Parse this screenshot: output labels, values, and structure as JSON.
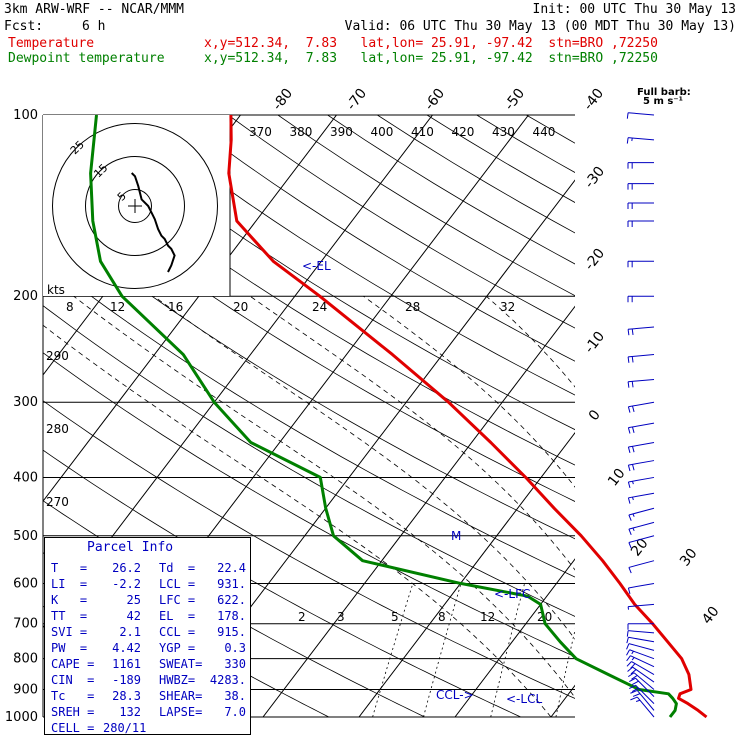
{
  "header": {
    "model": "3km ARW-WRF -- NCAR/MMM",
    "init": "Init: 00 UTC Thu 30 May 13",
    "fcst_label": "Fcst:",
    "fcst_value": "6 h",
    "valid": "Valid: 06 UTC Thu 30 May 13 (00 MDT Thu 30 May 13)"
  },
  "legend": [
    {
      "name": "Temperature",
      "info": "x,y=512.34,  7.83   lat,lon= 25.91, -97.42  stn=BRO ,72250",
      "color": "#e00000"
    },
    {
      "name": "Dewpoint temperature",
      "info": "x,y=512.34,  7.83   lat,lon= 25.91, -97.42  stn=BRO ,72250",
      "color": "#008000"
    }
  ],
  "wind_label": {
    "line1": "Full barb:",
    "line2": "5 m s⁻¹"
  },
  "hodograph": {
    "unit": "kts",
    "ring_labels": [
      "5",
      "15",
      "25"
    ]
  },
  "parcel_info": {
    "title": "Parcel Info",
    "rows": [
      [
        "T   =",
        "26.2",
        "Td  =",
        "22.4"
      ],
      [
        "LI  =",
        "-2.2",
        "LCL =",
        "931."
      ],
      [
        "K   =",
        "25",
        "LFC =",
        "622."
      ],
      [
        "TT  =",
        "42",
        "EL  =",
        "178."
      ],
      [
        "SVI =",
        "2.1",
        "CCL =",
        "915."
      ],
      [
        "PW  =",
        "4.42",
        "YGP =",
        "0.3"
      ],
      [
        "CAPE =",
        "1161",
        "SWEAT=",
        "330"
      ],
      [
        "CIN  =",
        "-189",
        "HWBZ=",
        "4283."
      ],
      [
        "Tc   =",
        "28.3",
        "SHEAR=",
        "38."
      ],
      [
        "SREH =",
        "132",
        "LAPSE=",
        "7.0"
      ],
      [
        "CELL =",
        "280/11",
        "",
        ""
      ]
    ]
  },
  "chart_data": {
    "type": "line",
    "title": "",
    "xlabel": "",
    "ylabel": "",
    "pressure_axis": {
      "ticks": [
        100,
        200,
        300,
        400,
        500,
        600,
        700,
        800,
        900,
        1000
      ],
      "scale": "log"
    },
    "isotherm_labels": [
      "-80",
      "-70",
      "-60",
      "-50",
      "-40",
      "-30",
      "-20",
      "-10",
      "0",
      "10",
      "20",
      "30",
      "40"
    ],
    "theta_labels": [
      "370",
      "380",
      "390",
      "400",
      "410",
      "420",
      "430",
      "440"
    ],
    "theta_e_labels": [
      "290",
      "280",
      "270"
    ],
    "mixing_ratio_labels": [
      "2",
      "3",
      "5",
      "8",
      "12",
      "20"
    ],
    "hodo_speed_labels": [
      "8",
      "12",
      "16",
      "20",
      "24",
      "28",
      "32"
    ],
    "annotations": [
      "<-EL",
      "<-LFC",
      "CCL->",
      "<-LCL",
      "M"
    ],
    "series": [
      {
        "name": "Temperature",
        "color": "#e00000",
        "points": [
          [
            1000,
            26.2
          ],
          [
            975,
            24.8
          ],
          [
            950,
            23.2
          ],
          [
            931,
            21.8
          ],
          [
            915,
            21.6
          ],
          [
            900,
            22.4
          ],
          [
            850,
            21.0
          ],
          [
            800,
            19.0
          ],
          [
            750,
            16.2
          ],
          [
            700,
            13.2
          ],
          [
            650,
            9.8
          ],
          [
            600,
            6.6
          ],
          [
            550,
            3.0
          ],
          [
            500,
            -1.2
          ],
          [
            450,
            -6.2
          ],
          [
            400,
            -11.6
          ],
          [
            350,
            -18.0
          ],
          [
            300,
            -25.6
          ],
          [
            250,
            -35.2
          ],
          [
            200,
            -47.4
          ],
          [
            175,
            -55.0
          ],
          [
            150,
            -62.0
          ],
          [
            125,
            -66.6
          ],
          [
            110,
            -69.0
          ],
          [
            100,
            -71.0
          ]
        ]
      },
      {
        "name": "Dewpoint temperature",
        "color": "#008000",
        "points": [
          [
            1000,
            22.4
          ],
          [
            975,
            22.4
          ],
          [
            950,
            22.0
          ],
          [
            931,
            21.2
          ],
          [
            915,
            20.4
          ],
          [
            900,
            17.0
          ],
          [
            850,
            12.6
          ],
          [
            800,
            8.0
          ],
          [
            750,
            5.0
          ],
          [
            700,
            2.0
          ],
          [
            650,
            0.0
          ],
          [
            630,
            -2.0
          ],
          [
            600,
            -10.0
          ],
          [
            550,
            -22.0
          ],
          [
            500,
            -27.0
          ],
          [
            450,
            -30.0
          ],
          [
            400,
            -33.0
          ],
          [
            350,
            -43.0
          ],
          [
            300,
            -50.0
          ],
          [
            250,
            -57.0
          ],
          [
            200,
            -68.0
          ],
          [
            175,
            -73.0
          ],
          [
            150,
            -77.0
          ],
          [
            125,
            -81.0
          ],
          [
            100,
            -85.0
          ]
        ]
      }
    ],
    "hodograph_trace": {
      "unit": "kts",
      "points": [
        [
          -1,
          10
        ],
        [
          0,
          9
        ],
        [
          1,
          6
        ],
        [
          2,
          2
        ],
        [
          4,
          0
        ],
        [
          5,
          -2
        ],
        [
          6,
          -4
        ],
        [
          7,
          -7
        ],
        [
          8,
          -9
        ],
        [
          9,
          -10
        ],
        [
          10,
          -12
        ],
        [
          11,
          -13
        ],
        [
          12,
          -15
        ],
        [
          11,
          -18
        ],
        [
          10,
          -20
        ]
      ]
    },
    "wind_barbs": {
      "unit": "m s-1",
      "levels": [
        [
          1000,
          220,
          8
        ],
        [
          975,
          220,
          10
        ],
        [
          950,
          225,
          12
        ],
        [
          925,
          225,
          12
        ],
        [
          900,
          230,
          12
        ],
        [
          875,
          235,
          11
        ],
        [
          850,
          240,
          10
        ],
        [
          825,
          245,
          9
        ],
        [
          800,
          250,
          8
        ],
        [
          775,
          255,
          7
        ],
        [
          750,
          260,
          6
        ],
        [
          725,
          265,
          5
        ],
        [
          700,
          270,
          5
        ],
        [
          650,
          275,
          4
        ],
        [
          600,
          280,
          5
        ],
        [
          550,
          285,
          6
        ],
        [
          500,
          285,
          7
        ],
        [
          475,
          285,
          8
        ],
        [
          450,
          285,
          8
        ],
        [
          425,
          280,
          9
        ],
        [
          400,
          280,
          9
        ],
        [
          375,
          280,
          10
        ],
        [
          350,
          280,
          10
        ],
        [
          325,
          280,
          11
        ],
        [
          300,
          280,
          11
        ],
        [
          275,
          275,
          12
        ],
        [
          250,
          275,
          12
        ],
        [
          225,
          275,
          12
        ],
        [
          200,
          270,
          12
        ],
        [
          175,
          270,
          11
        ],
        [
          150,
          270,
          11
        ],
        [
          140,
          270,
          10
        ],
        [
          130,
          270,
          10
        ],
        [
          120,
          270,
          10
        ],
        [
          110,
          265,
          8
        ],
        [
          100,
          265,
          6
        ]
      ]
    }
  }
}
